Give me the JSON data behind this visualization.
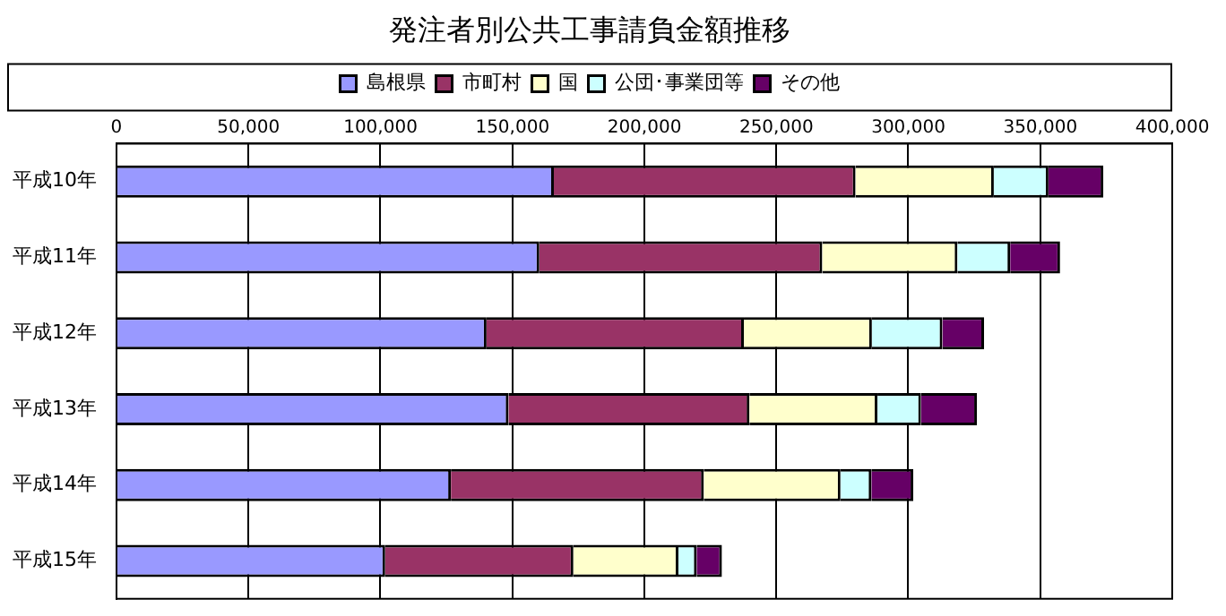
{
  "chart_data": {
    "type": "bar",
    "title": "発注者別公共工事請負金額推移",
    "orientation": "horizontal",
    "stacked": true,
    "categories": [
      "平成10年",
      "平成11年",
      "平成12年",
      "平成13年",
      "平成14年",
      "平成15年"
    ],
    "series": [
      {
        "name": "島根県",
        "color": "#9999ff",
        "values": [
          165700,
          160200,
          140200,
          148500,
          126700,
          101800
        ]
      },
      {
        "name": "市町村",
        "color": "#993366",
        "values": [
          114300,
          107200,
          97500,
          91300,
          95800,
          71300
        ]
      },
      {
        "name": "国",
        "color": "#ffffcc",
        "values": [
          52400,
          51200,
          48500,
          48500,
          51800,
          39800
        ]
      },
      {
        "name": "公団･事業団等",
        "color": "#ccffff",
        "values": [
          20700,
          20000,
          26700,
          16500,
          11700,
          6900
        ]
      },
      {
        "name": "その他",
        "color": "#660066",
        "values": [
          20800,
          18900,
          15800,
          21200,
          15900,
          9600
        ]
      }
    ],
    "xlim": [
      0,
      400000
    ],
    "xticks": [
      {
        "value": 0,
        "label": "0"
      },
      {
        "value": 50000,
        "label": "50,000"
      },
      {
        "value": 100000,
        "label": "100,000"
      },
      {
        "value": 150000,
        "label": "150,000"
      },
      {
        "value": 200000,
        "label": "200,000"
      },
      {
        "value": 250000,
        "label": "250,000"
      },
      {
        "value": 300000,
        "label": "300,000"
      },
      {
        "value": 350000,
        "label": "350,000"
      },
      {
        "value": 400000,
        "label": "400,000"
      }
    ],
    "grid": "x",
    "legend": "top"
  }
}
